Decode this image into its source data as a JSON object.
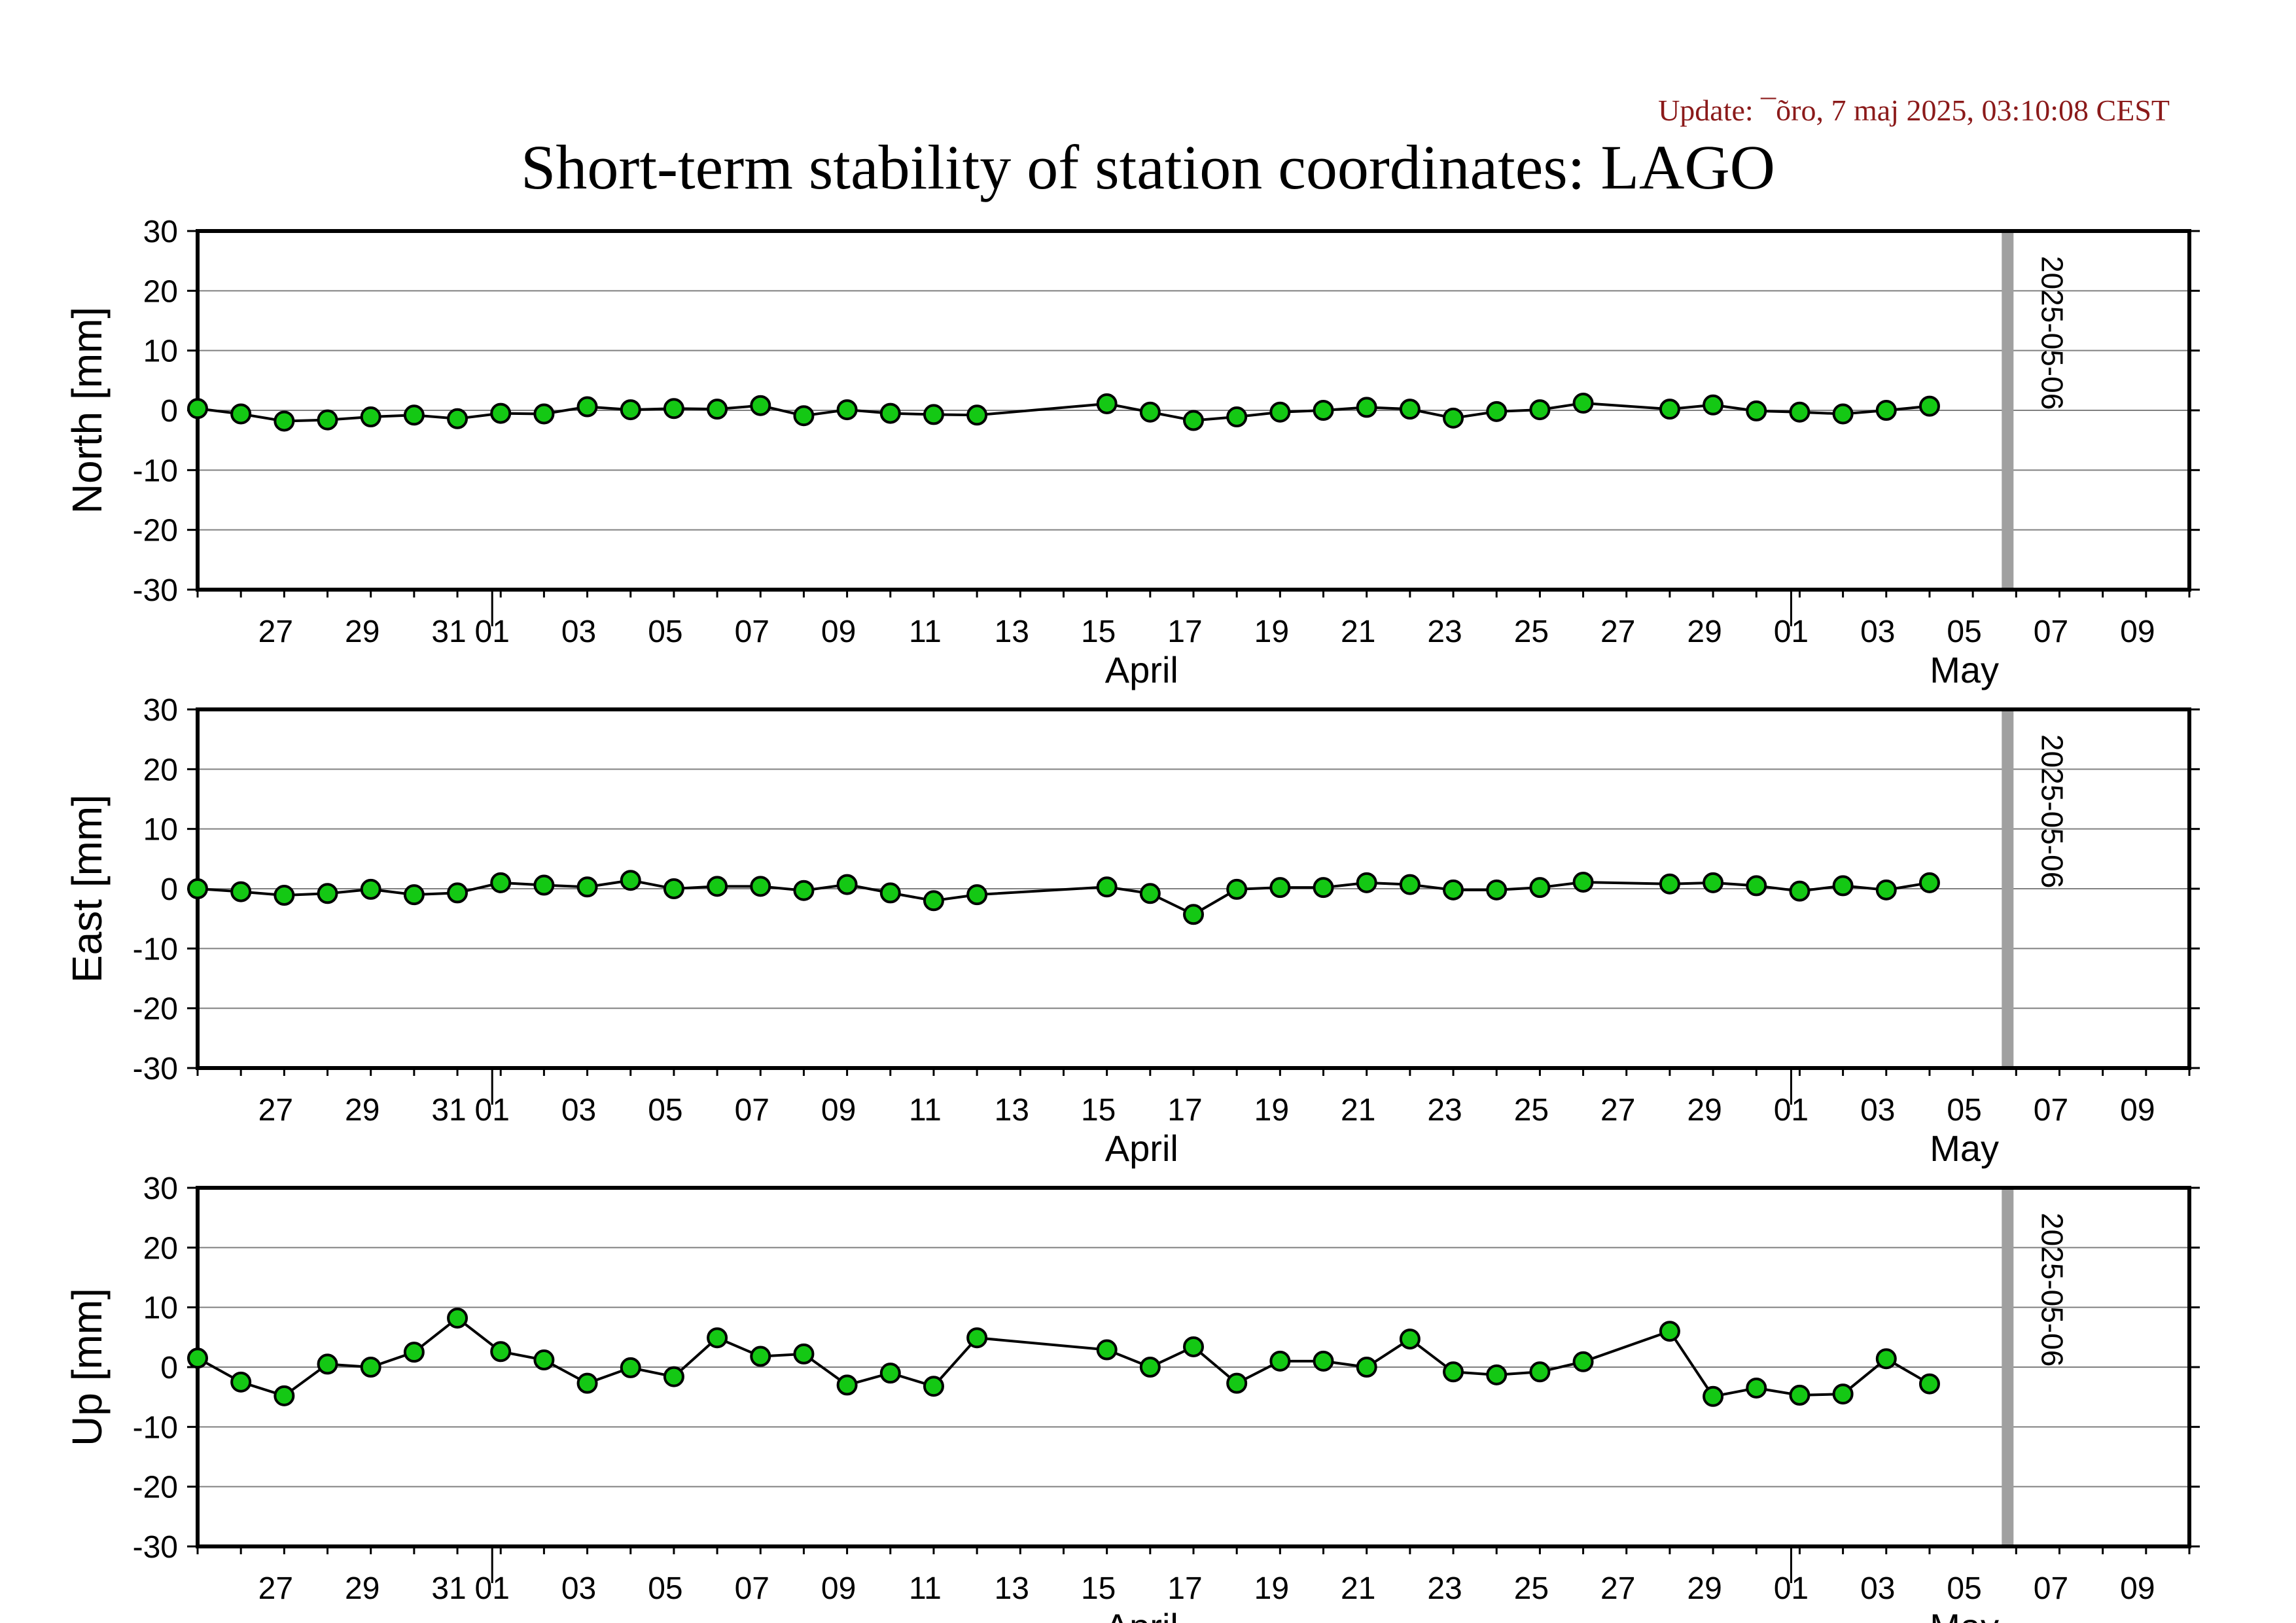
{
  "update_text": "Update: ¯õro, 7 maj 2025, 03:10:08 CEST",
  "title": "Short-term stability of station coordinates: LAGO",
  "chart_data": {
    "type": "line",
    "x_range": [
      "2025-03-25",
      "2025-05-10"
    ],
    "xlim": [
      "2025-03-25",
      "2025-05-10"
    ],
    "ylim": [
      -30,
      30
    ],
    "ytick_labels": [
      "30",
      "20",
      "10",
      "0",
      "-10",
      "-20",
      "-30"
    ],
    "xtick_labels": [
      "27",
      "29",
      "31",
      "01",
      "03",
      "05",
      "07",
      "09",
      "11",
      "13",
      "15",
      "17",
      "19",
      "21",
      "23",
      "25",
      "27",
      "29",
      "01",
      "03",
      "05",
      "07",
      "09"
    ],
    "month_labels": [
      "April",
      "May"
    ],
    "grid": true,
    "marker_color": "#14c814",
    "line_color": "#000000",
    "vline_color": "#a0a0a0",
    "vline_date": "2025-05-06",
    "vline_label": "2025-05-06",
    "panels": [
      {
        "ylabel": "North [mm]",
        "points": [
          [
            "2025-03-25",
            0.3
          ],
          [
            "2025-03-26",
            -0.6
          ],
          [
            "2025-03-27",
            -1.8
          ],
          [
            "2025-03-28",
            -1.6
          ],
          [
            "2025-03-29",
            -1.1
          ],
          [
            "2025-03-30",
            -0.8
          ],
          [
            "2025-03-31",
            -1.4
          ],
          [
            "2025-04-01",
            -0.5
          ],
          [
            "2025-04-02",
            -0.6
          ],
          [
            "2025-04-03",
            0.6
          ],
          [
            "2025-04-04",
            0.1
          ],
          [
            "2025-04-05",
            0.3
          ],
          [
            "2025-04-06",
            0.2
          ],
          [
            "2025-04-07",
            0.8
          ],
          [
            "2025-04-08",
            -0.9
          ],
          [
            "2025-04-09",
            0.1
          ],
          [
            "2025-04-10",
            -0.5
          ],
          [
            "2025-04-11",
            -0.7
          ],
          [
            "2025-04-12",
            -0.8
          ],
          [
            "2025-04-15",
            1.1
          ],
          [
            "2025-04-16",
            -0.3
          ],
          [
            "2025-04-17",
            -1.7
          ],
          [
            "2025-04-18",
            -1.1
          ],
          [
            "2025-04-19",
            -0.3
          ],
          [
            "2025-04-20",
            0.0
          ],
          [
            "2025-04-21",
            0.5
          ],
          [
            "2025-04-22",
            0.2
          ],
          [
            "2025-04-23",
            -1.3
          ],
          [
            "2025-04-24",
            -0.2
          ],
          [
            "2025-04-25",
            0.1
          ],
          [
            "2025-04-26",
            1.2
          ],
          [
            "2025-04-28",
            0.2
          ],
          [
            "2025-04-29",
            0.9
          ],
          [
            "2025-04-30",
            -0.1
          ],
          [
            "2025-05-01",
            -0.3
          ],
          [
            "2025-05-02",
            -0.6
          ],
          [
            "2025-05-03",
            0.0
          ],
          [
            "2025-05-04",
            0.7
          ]
        ]
      },
      {
        "ylabel": "East [mm]",
        "points": [
          [
            "2025-03-25",
            0.0
          ],
          [
            "2025-03-26",
            -0.5
          ],
          [
            "2025-03-27",
            -1.1
          ],
          [
            "2025-03-28",
            -0.8
          ],
          [
            "2025-03-29",
            -0.1
          ],
          [
            "2025-03-30",
            -1.0
          ],
          [
            "2025-03-31",
            -0.7
          ],
          [
            "2025-04-01",
            1.0
          ],
          [
            "2025-04-02",
            0.6
          ],
          [
            "2025-04-03",
            0.3
          ],
          [
            "2025-04-04",
            1.4
          ],
          [
            "2025-04-05",
            0.0
          ],
          [
            "2025-04-06",
            0.4
          ],
          [
            "2025-04-07",
            0.4
          ],
          [
            "2025-04-08",
            -0.3
          ],
          [
            "2025-04-09",
            0.7
          ],
          [
            "2025-04-10",
            -0.7
          ],
          [
            "2025-04-11",
            -2.0
          ],
          [
            "2025-04-12",
            -1.0
          ],
          [
            "2025-04-15",
            0.3
          ],
          [
            "2025-04-16",
            -0.8
          ],
          [
            "2025-04-17",
            -4.3
          ],
          [
            "2025-04-18",
            -0.1
          ],
          [
            "2025-04-19",
            0.2
          ],
          [
            "2025-04-20",
            0.2
          ],
          [
            "2025-04-21",
            1.0
          ],
          [
            "2025-04-22",
            0.7
          ],
          [
            "2025-04-23",
            -0.2
          ],
          [
            "2025-04-24",
            -0.2
          ],
          [
            "2025-04-25",
            0.2
          ],
          [
            "2025-04-26",
            1.1
          ],
          [
            "2025-04-28",
            0.8
          ],
          [
            "2025-04-29",
            1.0
          ],
          [
            "2025-04-30",
            0.5
          ],
          [
            "2025-05-01",
            -0.4
          ],
          [
            "2025-05-02",
            0.5
          ],
          [
            "2025-05-03",
            -0.2
          ],
          [
            "2025-05-04",
            1.0
          ]
        ]
      },
      {
        "ylabel": "Up [mm]",
        "points": [
          [
            "2025-03-25",
            1.5
          ],
          [
            "2025-03-26",
            -2.5
          ],
          [
            "2025-03-27",
            -4.8
          ],
          [
            "2025-03-28",
            0.5
          ],
          [
            "2025-03-29",
            0.0
          ],
          [
            "2025-03-30",
            2.5
          ],
          [
            "2025-03-31",
            8.2
          ],
          [
            "2025-04-01",
            2.6
          ],
          [
            "2025-04-02",
            1.2
          ],
          [
            "2025-04-03",
            -2.7
          ],
          [
            "2025-04-04",
            -0.1
          ],
          [
            "2025-04-05",
            -1.6
          ],
          [
            "2025-04-06",
            4.9
          ],
          [
            "2025-04-07",
            1.8
          ],
          [
            "2025-04-08",
            2.2
          ],
          [
            "2025-04-09",
            -3.0
          ],
          [
            "2025-04-10",
            -1.0
          ],
          [
            "2025-04-11",
            -3.2
          ],
          [
            "2025-04-12",
            4.9
          ],
          [
            "2025-04-15",
            2.9
          ],
          [
            "2025-04-16",
            0.0
          ],
          [
            "2025-04-17",
            3.4
          ],
          [
            "2025-04-18",
            -2.7
          ],
          [
            "2025-04-19",
            1.0
          ],
          [
            "2025-04-20",
            1.0
          ],
          [
            "2025-04-21",
            0.0
          ],
          [
            "2025-04-22",
            4.7
          ],
          [
            "2025-04-23",
            -0.8
          ],
          [
            "2025-04-24",
            -1.3
          ],
          [
            "2025-04-25",
            -0.8
          ],
          [
            "2025-04-26",
            0.9
          ],
          [
            "2025-04-28",
            6.0
          ],
          [
            "2025-04-29",
            -4.9
          ],
          [
            "2025-04-30",
            -3.5
          ],
          [
            "2025-05-01",
            -4.7
          ],
          [
            "2025-05-02",
            -4.5
          ],
          [
            "2025-05-03",
            1.4
          ],
          [
            "2025-05-04",
            -2.8
          ]
        ]
      }
    ]
  }
}
